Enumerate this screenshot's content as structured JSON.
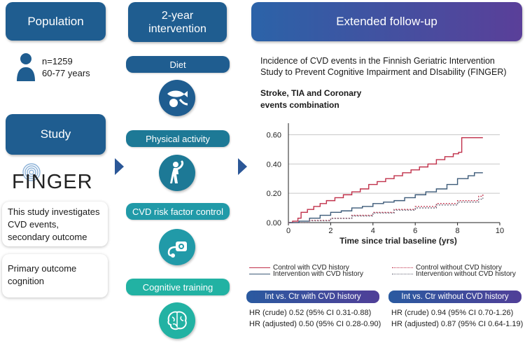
{
  "left": {
    "population_title": "Population",
    "n_text": "n=1259",
    "age_text": "60-77 years",
    "study_title": "Study",
    "logo_text": "FINGER",
    "note1": "This study investigates CVD events, secondary outcome",
    "note2": "Primary outcome cognition"
  },
  "middle": {
    "title": "2-year intervention",
    "items": [
      {
        "label": "Diet",
        "icon": "diet-icon"
      },
      {
        "label": "Physical  activity",
        "icon": "exercise-icon"
      },
      {
        "label": "CVD risk factor control",
        "icon": "blood-pressure-icon"
      },
      {
        "label": "Cognitive training",
        "icon": "brain-icon"
      }
    ]
  },
  "right": {
    "title": "Extended follow-up",
    "description": "Incidence of CVD events in the Finnish Geriatric Intervention Study to Prevent Cognitive Impairment and DIsability (FINGER)",
    "chart_title": "Stroke, TIA and Coronary events combination"
  },
  "colors": {
    "dark_blue": "#1f5d90",
    "control_cvd": "#c0304a",
    "intervention_cvd": "#3c5a78",
    "control_no_cvd": "#c0304a",
    "intervention_no_cvd": "#6a6a7a"
  },
  "chart_data": {
    "type": "line",
    "title": "Stroke, TIA and Coronary events combination",
    "xlabel": "Time since trial baseline (yrs)",
    "ylabel": "",
    "xlim": [
      0,
      10
    ],
    "ylim": [
      0,
      0.65
    ],
    "x_ticks": [
      "0",
      "2",
      "4",
      "6",
      "8",
      "10"
    ],
    "y_ticks": [
      "0.00",
      "0.20",
      "0.40",
      "0.60"
    ],
    "grid": "horizontal",
    "series": [
      {
        "name": "Control with CVD history",
        "style": "solid",
        "color": "#c0304a",
        "x": [
          0,
          0.2,
          0.45,
          0.6,
          0.9,
          1.2,
          1.5,
          1.8,
          2.2,
          2.6,
          3.0,
          3.4,
          3.8,
          4.2,
          4.6,
          5.0,
          5.4,
          5.8,
          6.2,
          6.6,
          7.0,
          7.4,
          7.8,
          8.05,
          8.2,
          9.2
        ],
        "y": [
          0,
          0.01,
          0.03,
          0.07,
          0.09,
          0.11,
          0.13,
          0.15,
          0.17,
          0.19,
          0.21,
          0.23,
          0.26,
          0.28,
          0.3,
          0.32,
          0.34,
          0.36,
          0.38,
          0.4,
          0.43,
          0.45,
          0.47,
          0.48,
          0.58,
          0.58
        ]
      },
      {
        "name": "Intervention with CVD history",
        "style": "solid",
        "color": "#3c5a78",
        "x": [
          0,
          0.5,
          1.0,
          1.5,
          2.0,
          2.5,
          3.0,
          3.5,
          4.0,
          4.5,
          5.0,
          5.5,
          6.0,
          6.5,
          7.0,
          7.5,
          8.0,
          8.5,
          8.8,
          9.2
        ],
        "y": [
          0,
          0.01,
          0.03,
          0.05,
          0.07,
          0.08,
          0.1,
          0.11,
          0.13,
          0.14,
          0.15,
          0.17,
          0.19,
          0.21,
          0.23,
          0.26,
          0.3,
          0.32,
          0.34,
          0.34
        ]
      },
      {
        "name": "Control without CVD history",
        "style": "dotted",
        "color": "#c0304a",
        "x": [
          0,
          1,
          2,
          3,
          4,
          5,
          6,
          7,
          8,
          9,
          9.2
        ],
        "y": [
          0,
          0.015,
          0.03,
          0.05,
          0.07,
          0.09,
          0.11,
          0.13,
          0.15,
          0.18,
          0.2
        ]
      },
      {
        "name": "Intervention without CVD history",
        "style": "dotted",
        "color": "#6a6a7a",
        "x": [
          0,
          1,
          2,
          3,
          4,
          5,
          6,
          7,
          8,
          9,
          9.2
        ],
        "y": [
          0,
          0.012,
          0.028,
          0.045,
          0.065,
          0.085,
          0.1,
          0.12,
          0.14,
          0.16,
          0.17
        ]
      }
    ]
  },
  "stats": {
    "with_cvd_title": "Int vs. Ctr with CVD history",
    "with_cvd_crude": "HR (crude) 0.52 (95% CI 0.31-0.88)",
    "with_cvd_adjusted": "HR (adjusted) 0.50 (95% CI 0.28-0.90)",
    "without_cvd_title": "Int vs. Ctr without CVD history",
    "without_cvd_crude": "HR (crude) 0.94 (95% CI 0.70-1.26)",
    "without_cvd_adjusted": "HR (adjusted) 0.87 (95% CI 0.64-1.19)"
  }
}
